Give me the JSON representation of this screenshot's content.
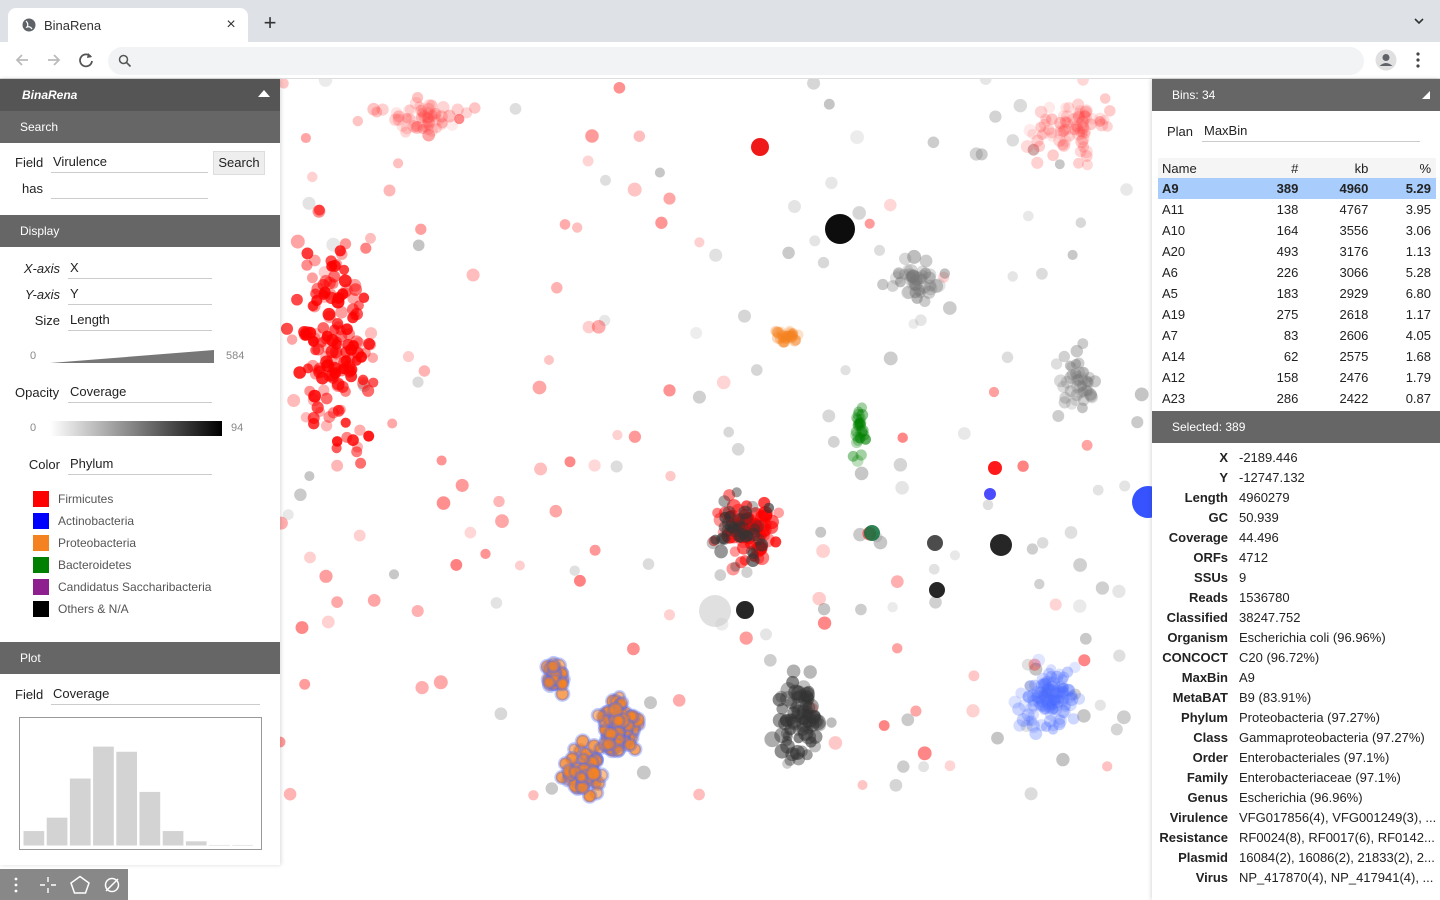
{
  "browser": {
    "tab_title": "BinaRena",
    "new_tab_label": "+",
    "close_label": "×"
  },
  "left": {
    "app_title": "BinaRena",
    "search": {
      "header": "Search",
      "field_label": "Field",
      "field_value": "Virulence",
      "button_label": "Search",
      "has_label": "has",
      "has_value": ""
    },
    "display": {
      "header": "Display",
      "xaxis_label": "X-axis",
      "xaxis_value": "X",
      "yaxis_label": "Y-axis",
      "yaxis_value": "Y",
      "size_label": "Size",
      "size_value": "Length",
      "size_min": "0",
      "size_max": "584",
      "opacity_label": "Opacity",
      "opacity_value": "Coverage",
      "opacity_min": "0",
      "opacity_max": "94",
      "color_label": "Color",
      "color_value": "Phylum",
      "legend": [
        {
          "label": "Firmicutes",
          "color": "#ff0000"
        },
        {
          "label": "Actinobacteria",
          "color": "#0000ff"
        },
        {
          "label": "Proteobacteria",
          "color": "#f58220"
        },
        {
          "label": "Bacteroidetes",
          "color": "#008000"
        },
        {
          "label": "Candidatus Saccharibacteria",
          "color": "#8e1f8e"
        },
        {
          "label": "Others & N/A",
          "color": "#000000"
        }
      ]
    },
    "plot": {
      "header": "Plot",
      "field_label": "Field",
      "field_value": "Coverage",
      "histogram": [
        0.15,
        0.28,
        0.66,
        0.97,
        0.92,
        0.53,
        0.15,
        0.05,
        0.015,
        0.015
      ]
    }
  },
  "right": {
    "bins_header": "Bins: 34",
    "plan_label": "Plan",
    "plan_value": "MaxBin",
    "columns": [
      "Name",
      "#",
      "kb",
      "%"
    ],
    "rows": [
      [
        "A9",
        "389",
        "4960",
        "5.29"
      ],
      [
        "A11",
        "138",
        "4767",
        "3.95"
      ],
      [
        "A10",
        "164",
        "3556",
        "3.06"
      ],
      [
        "A20",
        "493",
        "3176",
        "1.13"
      ],
      [
        "A6",
        "226",
        "3066",
        "5.28"
      ],
      [
        "A5",
        "183",
        "2929",
        "6.80"
      ],
      [
        "A19",
        "275",
        "2618",
        "1.17"
      ],
      [
        "A7",
        "83",
        "2606",
        "4.05"
      ],
      [
        "A14",
        "62",
        "2575",
        "1.68"
      ],
      [
        "A12",
        "158",
        "2476",
        "1.79"
      ],
      [
        "A23",
        "286",
        "2422",
        "0.87"
      ]
    ],
    "selected_header": "Selected: 389",
    "properties": [
      {
        "k": "X",
        "v": "-2189.446"
      },
      {
        "k": "Y",
        "v": "-12747.132"
      },
      {
        "k": "Length",
        "v": "4960279"
      },
      {
        "k": "GC",
        "v": "50.939"
      },
      {
        "k": "Coverage",
        "v": "44.496"
      },
      {
        "k": "ORFs",
        "v": "4712"
      },
      {
        "k": "SSUs",
        "v": "9"
      },
      {
        "k": "Reads",
        "v": "1536780"
      },
      {
        "k": "Classified",
        "v": "38247.752"
      },
      {
        "k": "Organism",
        "v": "Escherichia coli (96.96%)"
      },
      {
        "k": "CONCOCT",
        "v": "C20 (96.72%)"
      },
      {
        "k": "MaxBin",
        "v": "A9"
      },
      {
        "k": "MetaBAT",
        "v": "B9 (83.91%)"
      },
      {
        "k": "Phylum",
        "v": "Proteobacteria (97.27%)"
      },
      {
        "k": "Class",
        "v": "Gammaproteobacteria (97.27%)"
      },
      {
        "k": "Order",
        "v": "Enterobacteriales (97.1%)"
      },
      {
        "k": "Family",
        "v": "Enterobacteriaceae (97.1%)"
      },
      {
        "k": "Genus",
        "v": "Escherichia (96.96%)"
      },
      {
        "k": "Virulence",
        "v": "VFG017856(4), VFG001249(3), ..."
      },
      {
        "k": "Resistance",
        "v": "RF0024(8), RF0017(6), RF0142..."
      },
      {
        "k": "Plasmid",
        "v": "16084(2), 16086(2), 21833(2), 2..."
      },
      {
        "k": "Virus",
        "v": "NP_417870(4), NP_417941(4), ..."
      }
    ]
  },
  "colors": {
    "firmicutes": "#ff0000",
    "actinobacteria": "#0000ff",
    "proteobacteria": "#f58220",
    "bacteroidetes": "#008000",
    "others": "#000000",
    "selection_row": "#a8cdfc",
    "panel_header": "#666666"
  }
}
